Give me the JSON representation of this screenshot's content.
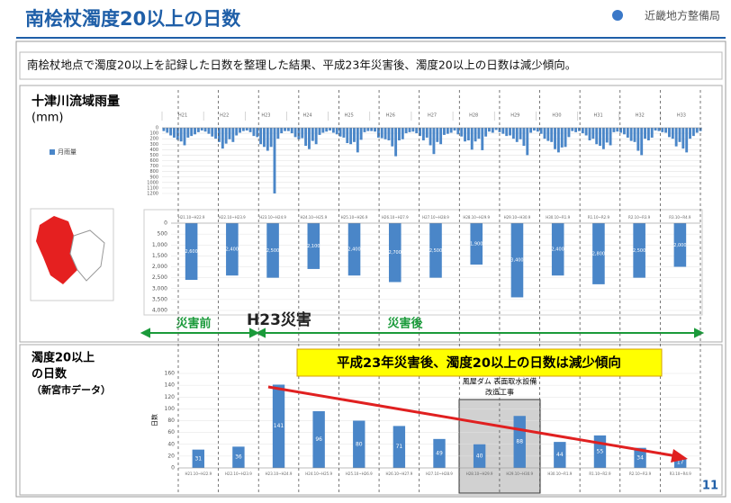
{
  "slide": {
    "title": "南桧杖濁度20以上の日数",
    "organization": "近畿地方整備局",
    "summary": "南桧杖地点で濁度20以上を記録した日数を整理した結果、平成23年災害後、濁度20以上の日数は減少傾向。",
    "rain_title": "十津川流域雨量",
    "rain_unit": "(mm)",
    "before_label": "災害前",
    "disaster_label": "H23災害",
    "after_label": "災害後",
    "highlight": "平成23年災害後、濁度20以上の日数は減少傾向",
    "construction_lines": [
      "風屋ダム 表面取水設備",
      "改造工事"
    ],
    "page_number": "11"
  },
  "chart_data": [
    {
      "type": "bar",
      "yreversed": true,
      "color": "#4a86c8",
      "series": [
        {
          "name": "月雨量",
          "color": "#4a86c8",
          "values": [
            60,
            90,
            140,
            180,
            220,
            250,
            320,
            180,
            150,
            120,
            80,
            50,
            70,
            110,
            160,
            200,
            260,
            380,
            290,
            210,
            260,
            140,
            90,
            60,
            50,
            80,
            150,
            170,
            300,
            350,
            420,
            350,
            1200,
            200,
            100,
            60,
            60,
            100,
            170,
            210,
            190,
            330,
            390,
            240,
            300,
            130,
            90,
            70,
            50,
            90,
            120,
            160,
            180,
            280,
            300,
            260,
            450,
            220,
            80,
            60,
            60,
            70,
            180,
            190,
            210,
            230,
            340,
            520,
            230,
            210,
            100,
            80,
            70,
            100,
            150,
            230,
            180,
            320,
            480,
            260,
            300,
            130,
            110,
            90,
            50,
            120,
            160,
            250,
            230,
            400,
            250,
            200,
            410,
            160,
            70,
            90,
            40,
            80,
            110,
            150,
            140,
            200,
            260,
            210,
            330,
            500,
            90,
            50,
            70,
            110,
            200,
            240,
            260,
            390,
            450,
            360,
            350,
            170,
            60,
            80,
            60,
            100,
            140,
            230,
            200,
            300,
            330,
            390,
            270,
            320,
            80,
            70,
            90,
            120,
            180,
            240,
            260,
            420,
            500,
            200,
            230,
            180,
            50,
            60,
            80,
            90,
            170,
            200,
            340,
            260,
            380,
            450,
            200,
            150,
            90,
            60
          ]
        }
      ],
      "year_labels": [
        "H21",
        "H22",
        "H23",
        "H24",
        "H25",
        "H26",
        "H27",
        "H28",
        "H29",
        "H30",
        "H31",
        "H32",
        "H33"
      ],
      "ylim": [
        0,
        1200
      ],
      "yticks": [
        0,
        100,
        200,
        300,
        400,
        500,
        600,
        700,
        800,
        900,
        {
          "value": 1000,
          "label": "1000"
        },
        {
          "value": 1100,
          "label": "1100"
        },
        {
          "value": 1200,
          "label": "1200"
        }
      ]
    },
    {
      "type": "bar",
      "yreversed": true,
      "color": "#4a86c8",
      "categories": [
        "H21.10~H22.9",
        "H22.10~H23.9",
        "H23.10~H24.9",
        "H24.10~H25.9",
        "H25.10~H26.9",
        "H26.10~H27.9",
        "H27.10~H28.9",
        "H28.10~H29.9",
        "H29.10~H30.9",
        "H30.10~R1.9",
        "R1.10~R2.9",
        "R2.10~R3.9",
        "R3.10~R4.9"
      ],
      "values": [
        2600,
        2400,
        2500,
        2100,
        2400,
        2700,
        2500,
        1900,
        3400,
        2400,
        2800,
        2500,
        2000
      ],
      "value_labels": [
        "2,600",
        "2,400",
        "2,500",
        "2,100",
        "2,400",
        "2,700",
        "2,500",
        "1,900",
        "3,400",
        "2,400",
        "2,800",
        "2,500",
        "2,000"
      ],
      "ylim": [
        0,
        4000
      ],
      "yticks": [
        0,
        500,
        {
          "value": 1000,
          "label": "1,000"
        },
        {
          "value": 1500,
          "label": "1,500"
        },
        {
          "value": 2000,
          "label": "2,000"
        },
        {
          "value": 2500,
          "label": "2,500"
        },
        {
          "value": 3000,
          "label": "3,000"
        },
        {
          "value": 3500,
          "label": "3,500"
        },
        {
          "value": 4000,
          "label": "4,000"
        }
      ]
    },
    {
      "type": "bar",
      "color": "#4a86c8",
      "title_lines": [
        "濁度20以上",
        "の日数"
      ],
      "subtitle": "（新宮市データ）",
      "ylabel": "日数",
      "categories": [
        "H21.10~H22.9",
        "H22.10~H23.9",
        "H23.10~H24.9",
        "H24.10~H25.9",
        "H25.10~H26.9",
        "H26.10~H27.9",
        "H27.10~H28.9",
        "H28.10~H29.9",
        "H29.10~H30.9",
        "H30.10~R1.9",
        "R1.10~R2.9",
        "R2.10~R3.9",
        "R3.10~R4.9"
      ],
      "values": [
        31,
        36,
        141,
        96,
        80,
        71,
        49,
        40,
        88,
        44,
        55,
        34,
        17
      ],
      "ylim": [
        0,
        160
      ],
      "yticks": [
        0,
        20,
        40,
        60,
        80,
        100,
        120,
        140,
        160
      ]
    }
  ]
}
